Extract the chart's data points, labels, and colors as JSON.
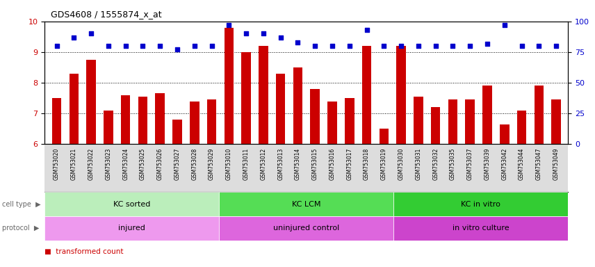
{
  "title": "GDS4608 / 1555874_x_at",
  "samples": [
    "GSM753020",
    "GSM753021",
    "GSM753022",
    "GSM753023",
    "GSM753024",
    "GSM753025",
    "GSM753026",
    "GSM753027",
    "GSM753028",
    "GSM753029",
    "GSM753010",
    "GSM753011",
    "GSM753012",
    "GSM753013",
    "GSM753014",
    "GSM753015",
    "GSM753016",
    "GSM753017",
    "GSM753018",
    "GSM753019",
    "GSM753030",
    "GSM753031",
    "GSM753032",
    "GSM753035",
    "GSM753037",
    "GSM753039",
    "GSM753042",
    "GSM753044",
    "GSM753047",
    "GSM753049"
  ],
  "bar_values": [
    7.5,
    8.3,
    8.75,
    7.1,
    7.6,
    7.55,
    7.65,
    6.8,
    7.4,
    7.45,
    9.8,
    9.0,
    9.2,
    8.3,
    8.5,
    7.8,
    7.4,
    7.5,
    9.2,
    6.5,
    9.2,
    7.55,
    7.2,
    7.45,
    7.45,
    7.9,
    6.65,
    7.1,
    7.9,
    7.45
  ],
  "dot_values_pct": [
    80,
    87,
    90,
    80,
    80,
    80,
    80,
    77,
    80,
    80,
    97,
    90,
    90,
    87,
    83,
    80,
    80,
    80,
    93,
    80,
    80,
    80,
    80,
    80,
    80,
    82,
    97,
    80,
    80,
    80
  ],
  "ylim_left": [
    6,
    10
  ],
  "ylim_right": [
    0,
    100
  ],
  "yticks_left": [
    6,
    7,
    8,
    9,
    10
  ],
  "yticks_right": [
    0,
    25,
    50,
    75,
    100
  ],
  "bar_color": "#cc0000",
  "dot_color": "#0000cc",
  "grid_color": "#000000",
  "cell_type_groups": [
    {
      "label": "KC sorted",
      "start": 0,
      "end": 10,
      "color": "#bbeebb"
    },
    {
      "label": "KC LCM",
      "start": 10,
      "end": 20,
      "color": "#55dd55"
    },
    {
      "label": "KC in vitro",
      "start": 20,
      "end": 30,
      "color": "#33cc33"
    }
  ],
  "protocol_groups": [
    {
      "label": "injured",
      "start": 0,
      "end": 10,
      "color": "#ee99ee"
    },
    {
      "label": "uninjured control",
      "start": 10,
      "end": 20,
      "color": "#dd66dd"
    },
    {
      "label": "in vitro culture",
      "start": 20,
      "end": 30,
      "color": "#cc44cc"
    }
  ],
  "background_color": "#ffffff",
  "xtick_bg": "#dddddd"
}
